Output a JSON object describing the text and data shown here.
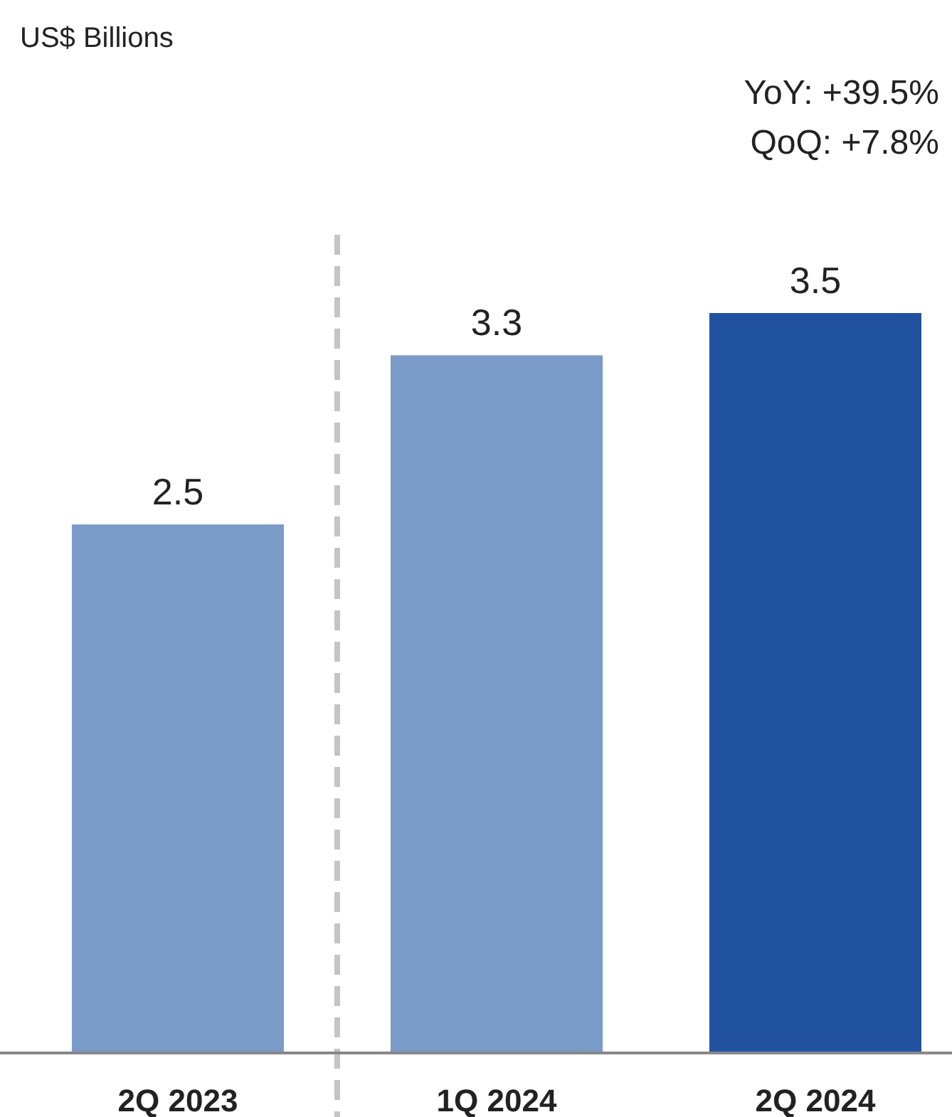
{
  "chart_data": {
    "type": "bar",
    "categories": [
      "2Q 2023",
      "1Q 2024",
      "2Q 2024"
    ],
    "values": [
      2.5,
      3.3,
      3.5
    ],
    "colors": [
      "#7a9ac8",
      "#7a9ac8",
      "#2152a0"
    ],
    "data_labels": true,
    "annotations": [
      "US$ Billions",
      "YoY: +39.5%",
      "QoQ: +7.8%"
    ]
  }
}
